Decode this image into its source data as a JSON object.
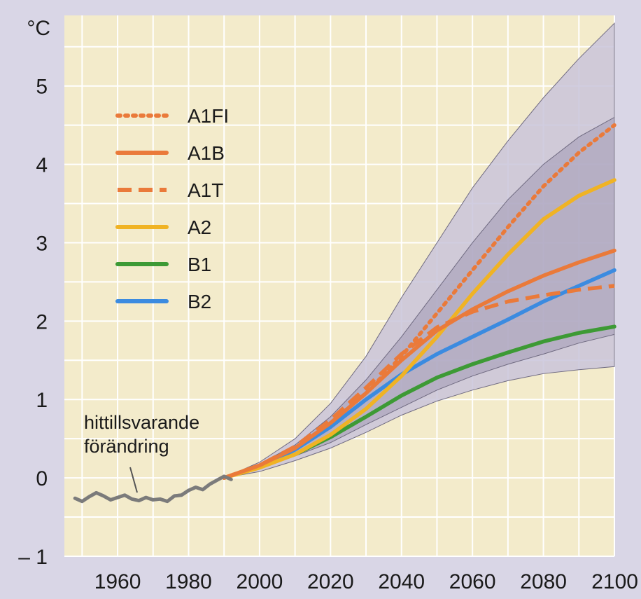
{
  "chart_data": {
    "type": "line",
    "unit_label": "°C",
    "xlim": [
      1945,
      2100
    ],
    "ylim": [
      -1,
      5.9
    ],
    "x_ticks": [
      1960,
      1980,
      2000,
      2020,
      2040,
      2060,
      2080,
      2100
    ],
    "x_tick_labels": [
      "1960",
      "1980",
      "2000",
      "2020",
      "2040",
      "2060",
      "2080",
      "2100"
    ],
    "y_ticks": [
      -1,
      0,
      1,
      2,
      3,
      4,
      5
    ],
    "y_tick_labels": [
      "– 1",
      "0",
      "1",
      "2",
      "3",
      "4",
      "5"
    ],
    "grid": true,
    "legend_position": "top-left",
    "colors": {
      "background": "#d9d6e6",
      "plot_area": "#f3ebcb",
      "grid": "#ffffff",
      "outer_band": "#c9c4da",
      "inner_band": "#a59db8",
      "historical": "#7b7b7b"
    },
    "historical": {
      "label": "hittillsvarande\nförändring",
      "x": [
        1948,
        1950,
        1952,
        1954,
        1956,
        1958,
        1960,
        1962,
        1964,
        1966,
        1968,
        1970,
        1972,
        1974,
        1976,
        1978,
        1980,
        1982,
        1984,
        1986,
        1988,
        1990,
        1992
      ],
      "y": [
        -0.26,
        -0.3,
        -0.24,
        -0.19,
        -0.23,
        -0.28,
        -0.25,
        -0.22,
        -0.27,
        -0.29,
        -0.25,
        -0.28,
        -0.27,
        -0.3,
        -0.23,
        -0.22,
        -0.16,
        -0.12,
        -0.15,
        -0.08,
        -0.03,
        0.02,
        -0.02
      ]
    },
    "bands": [
      {
        "x": [
          1990,
          2000,
          2010,
          2020,
          2030,
          2040,
          2050,
          2060,
          2070,
          2080,
          2090,
          2100
        ],
        "lower": [
          0.0,
          0.08,
          0.22,
          0.38,
          0.58,
          0.8,
          0.98,
          1.12,
          1.24,
          1.33,
          1.38,
          1.42
        ],
        "upper": [
          0.0,
          0.2,
          0.5,
          0.95,
          1.55,
          2.3,
          3.0,
          3.7,
          4.3,
          4.85,
          5.35,
          5.8
        ]
      },
      {
        "x": [
          1990,
          2000,
          2010,
          2020,
          2030,
          2040,
          2050,
          2060,
          2070,
          2080,
          2090,
          2100
        ],
        "lower": [
          0.0,
          0.12,
          0.28,
          0.45,
          0.68,
          0.9,
          1.12,
          1.3,
          1.45,
          1.58,
          1.72,
          1.83
        ],
        "upper": [
          0.0,
          0.18,
          0.42,
          0.78,
          1.25,
          1.8,
          2.4,
          3.0,
          3.55,
          4.0,
          4.35,
          4.6
        ]
      }
    ],
    "series": [
      {
        "name": "A1FI",
        "color": "#ea7a3a",
        "style": "dotted",
        "x": [
          1990,
          2000,
          2010,
          2020,
          2030,
          2040,
          2050,
          2060,
          2070,
          2080,
          2090,
          2100
        ],
        "y": [
          0.0,
          0.16,
          0.38,
          0.7,
          1.08,
          1.55,
          2.1,
          2.65,
          3.2,
          3.72,
          4.15,
          4.5
        ]
      },
      {
        "name": "A1B",
        "color": "#ea7a3a",
        "style": "solid",
        "x": [
          1990,
          2000,
          2010,
          2020,
          2030,
          2040,
          2050,
          2060,
          2070,
          2080,
          2090,
          2100
        ],
        "y": [
          0.0,
          0.16,
          0.38,
          0.7,
          1.08,
          1.5,
          1.88,
          2.15,
          2.38,
          2.58,
          2.75,
          2.9
        ]
      },
      {
        "name": "A1T",
        "color": "#ea7a3a",
        "style": "dashed",
        "x": [
          1990,
          2000,
          2010,
          2020,
          2030,
          2040,
          2050,
          2060,
          2070,
          2080,
          2090,
          2100
        ],
        "y": [
          0.0,
          0.16,
          0.4,
          0.74,
          1.15,
          1.58,
          1.92,
          2.12,
          2.25,
          2.33,
          2.4,
          2.45
        ]
      },
      {
        "name": "A2",
        "color": "#f0b324",
        "style": "solid",
        "x": [
          1990,
          2000,
          2010,
          2020,
          2030,
          2040,
          2050,
          2060,
          2070,
          2080,
          2090,
          2100
        ],
        "y": [
          0.0,
          0.13,
          0.3,
          0.55,
          0.88,
          1.3,
          1.8,
          2.35,
          2.85,
          3.3,
          3.6,
          3.8
        ]
      },
      {
        "name": "B1",
        "color": "#3d9a35",
        "style": "solid",
        "x": [
          1990,
          2000,
          2010,
          2020,
          2030,
          2040,
          2050,
          2060,
          2070,
          2080,
          2090,
          2100
        ],
        "y": [
          0.0,
          0.14,
          0.3,
          0.52,
          0.78,
          1.05,
          1.28,
          1.45,
          1.6,
          1.74,
          1.85,
          1.93
        ]
      },
      {
        "name": "B2",
        "color": "#3b8be0",
        "style": "solid",
        "x": [
          1990,
          2000,
          2010,
          2020,
          2030,
          2040,
          2050,
          2060,
          2070,
          2080,
          2090,
          2100
        ],
        "y": [
          0.0,
          0.15,
          0.36,
          0.65,
          1.0,
          1.32,
          1.58,
          1.8,
          2.02,
          2.25,
          2.45,
          2.65
        ]
      }
    ]
  }
}
